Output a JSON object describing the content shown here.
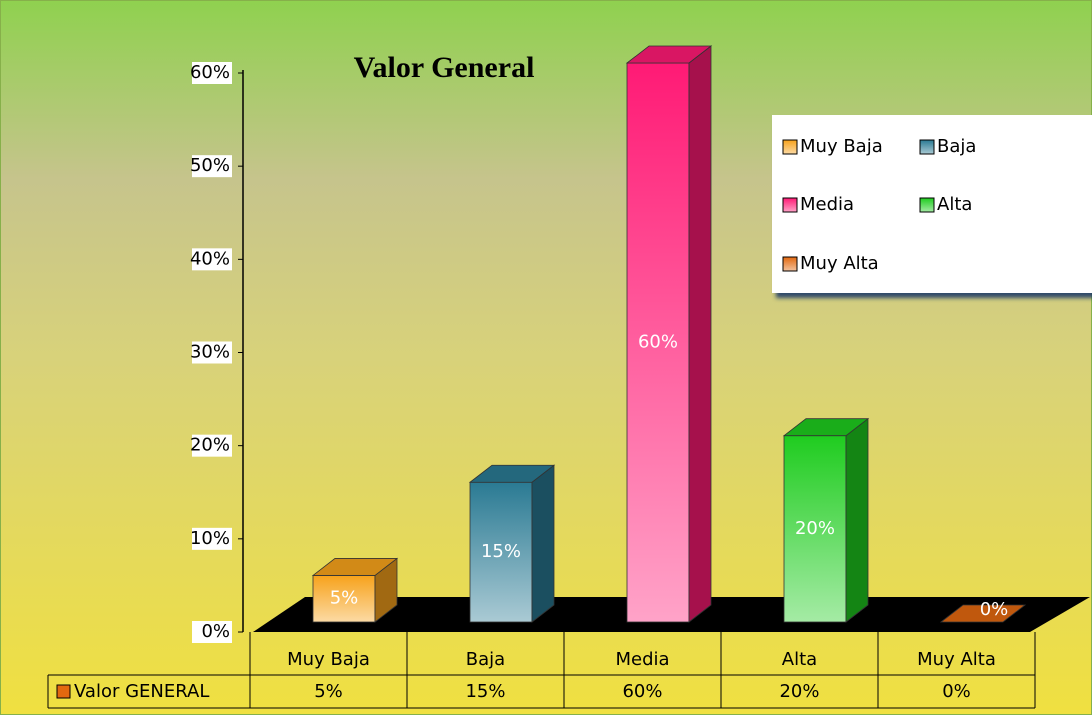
{
  "chart_data": {
    "type": "bar",
    "title": "Valor General",
    "categories": [
      "Muy Baja",
      "Baja",
      "Media",
      "Alta",
      "Muy Alta"
    ],
    "series": [
      {
        "name": "Valor GENERAL",
        "values": [
          5,
          15,
          60,
          20,
          0
        ],
        "value_labels": [
          "5%",
          "15%",
          "60%",
          "20%",
          "0%"
        ],
        "colors": [
          "#f7a21b",
          "#2a7a93",
          "#ff1a75",
          "#1fcc1f",
          "#e2680f"
        ]
      }
    ],
    "ylim": [
      0,
      60
    ],
    "yticks": [
      {
        "value": 0,
        "label": "0%"
      },
      {
        "value": 10,
        "label": "10%"
      },
      {
        "value": 20,
        "label": "20%"
      },
      {
        "value": 30,
        "label": "30%"
      },
      {
        "value": 40,
        "label": "40%"
      },
      {
        "value": 50,
        "label": "50%"
      },
      {
        "value": 60,
        "label": "60%"
      }
    ],
    "legend": "top-right",
    "data_table": true
  }
}
